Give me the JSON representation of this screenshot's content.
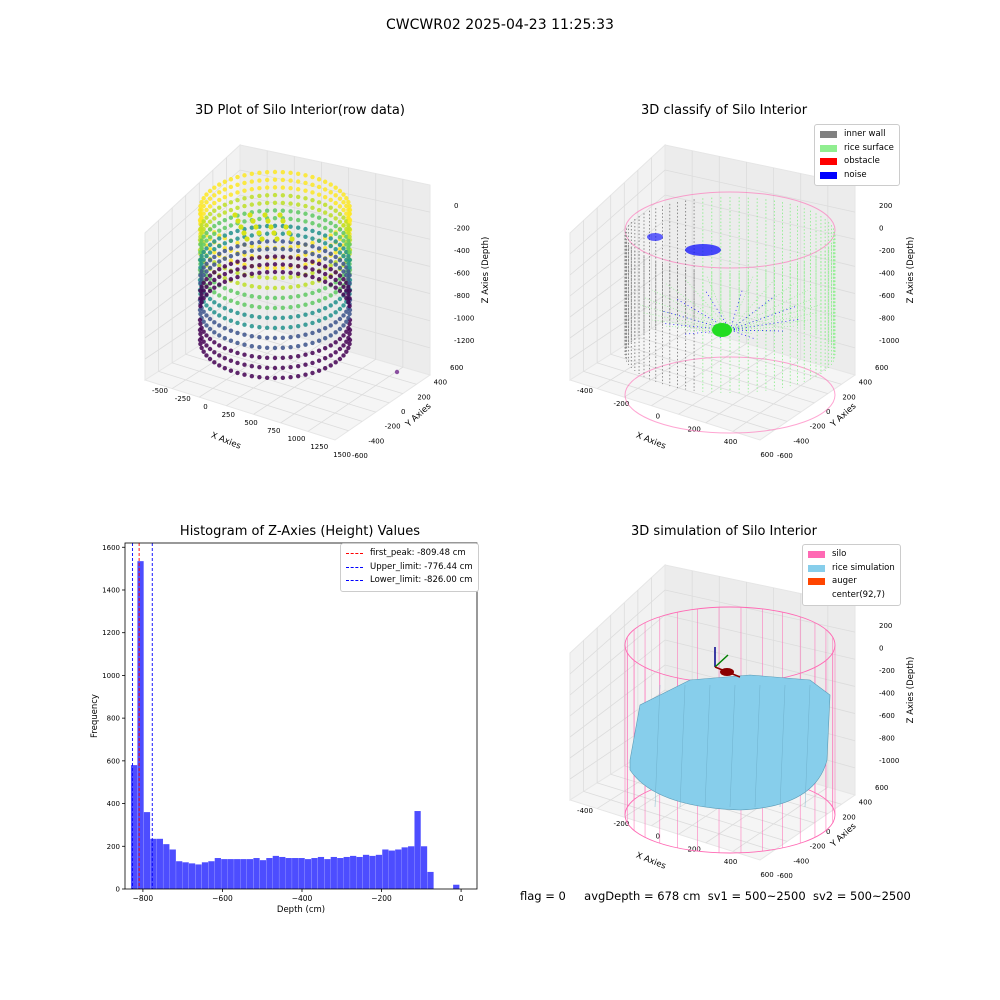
{
  "figure": {
    "suptitle": "CWCWR02 2025-04-23 11:25:33",
    "status": {
      "flag": "flag = 0",
      "avg": "avgDepth = 678 cm",
      "sv1": "sv1 = 500~2500",
      "sv2": "sv2 = 500~2500"
    }
  },
  "colors": {
    "inner_wall": "#808080",
    "rice_surface": "#90ee90",
    "obstacle": "#ff0000",
    "noise": "#0000ff",
    "silo": "#ff69b4",
    "rice_sim": "#87ceeb",
    "auger": "#ff4500",
    "hist_bar": "#4d4dff"
  },
  "chart_data": [
    {
      "type": "scatter",
      "title": "3D Plot of Silo Interior(row data)",
      "xlabel": "X Axies",
      "ylabel": "Y Axies",
      "zlabel": "Z Axies (Depth)",
      "xticks": [
        "-500",
        "-250",
        "0",
        "250",
        "500",
        "750",
        "1000",
        "1250",
        "1500"
      ],
      "yticks": [
        "600",
        "400",
        "200",
        "0",
        "-200",
        "-400",
        "-600"
      ],
      "zticks": [
        "0",
        "-200",
        "-400",
        "-600",
        "-800",
        "-1000",
        "-1200"
      ],
      "colormap": "viridis",
      "outlier_point": {
        "x": 1300,
        "y": 300,
        "z": -1300
      }
    },
    {
      "type": "scatter",
      "title": "3D classify of Silo Interior",
      "xlabel": "X Axies",
      "ylabel": "Y Axies",
      "zlabel": "Z Axies (Depth)",
      "xticks": [
        "-400",
        "-200",
        "0",
        "200",
        "400",
        "600"
      ],
      "yticks": [
        "600",
        "400",
        "200",
        "0",
        "-200",
        "-400",
        "-600"
      ],
      "zticks": [
        "200",
        "0",
        "-200",
        "-400",
        "-600",
        "-800",
        "-1000"
      ],
      "legend": [
        "inner wall",
        "rice surface",
        "obstacle",
        "noise"
      ]
    },
    {
      "type": "bar",
      "title": "Histogram of Z-Axies (Height) Values",
      "xlabel": "Depth (cm)",
      "ylabel": "Frequency",
      "xlim": [
        -845,
        40
      ],
      "ylim": [
        0,
        1620
      ],
      "xticks": [
        -800,
        -600,
        -400,
        -200,
        0
      ],
      "xtick_labels": [
        "−800",
        "−600",
        "−400",
        "−200",
        "0"
      ],
      "yticks": [
        0,
        200,
        400,
        600,
        800,
        1000,
        1200,
        1400,
        1600
      ],
      "bin_start": -830,
      "bin_width": 16.2,
      "values": [
        580,
        1535,
        360,
        235,
        235,
        210,
        185,
        130,
        125,
        120,
        115,
        125,
        130,
        145,
        140,
        140,
        140,
        140,
        140,
        145,
        135,
        145,
        155,
        150,
        145,
        145,
        145,
        140,
        145,
        150,
        140,
        150,
        145,
        150,
        155,
        150,
        160,
        155,
        160,
        185,
        180,
        185,
        195,
        200,
        365,
        200,
        80,
        0,
        0,
        0,
        20
      ],
      "lines": [
        {
          "label": "first_peak: -809.48 cm",
          "x": -809.48,
          "color": "#ff0000"
        },
        {
          "label": "Upper_limit: -776.44 cm",
          "x": -776.44,
          "color": "#0000ff"
        },
        {
          "label": "Lower_limit: -826.00 cm",
          "x": -826.0,
          "color": "#0000ff"
        }
      ]
    },
    {
      "type": "area",
      "title": "3D simulation of Silo Interior",
      "xlabel": "X Axies",
      "ylabel": "Y Axies",
      "zlabel": "Z Axies (Depth)",
      "xticks": [
        "-400",
        "-200",
        "0",
        "200",
        "400",
        "600"
      ],
      "yticks": [
        "600",
        "400",
        "200",
        "0",
        "-200",
        "-400",
        "-600"
      ],
      "zticks": [
        "200",
        "0",
        "-200",
        "-400",
        "-600",
        "-800",
        "-1000"
      ],
      "legend": [
        "silo",
        "rice simulation",
        "auger",
        "center(92,7)"
      ]
    }
  ]
}
